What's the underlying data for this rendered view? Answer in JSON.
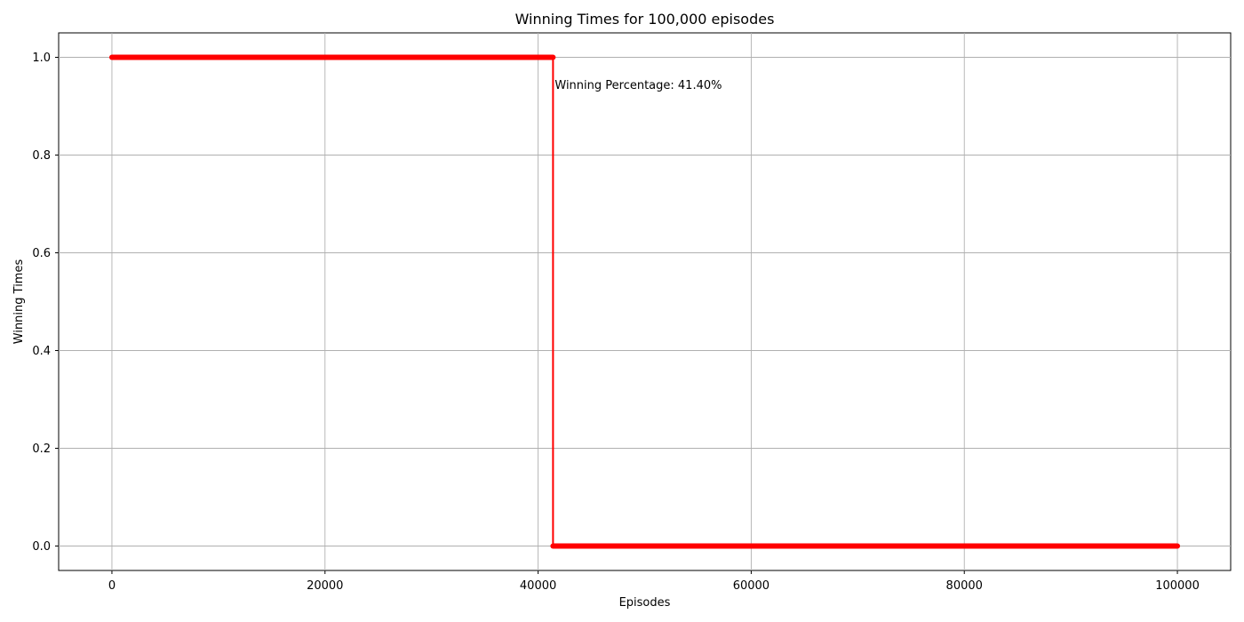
{
  "chart_data": {
    "type": "line",
    "title": "Winning Times for 100,000 episodes",
    "xlabel": "Episodes",
    "ylabel": "Winning Times",
    "xlim": [
      -5000,
      105000
    ],
    "ylim": [
      -0.05,
      1.05
    ],
    "grid": true,
    "x_ticks": [
      0,
      20000,
      40000,
      60000,
      80000,
      100000
    ],
    "x_tick_labels": [
      "0",
      "20000",
      "40000",
      "60000",
      "80000",
      "100000"
    ],
    "y_ticks": [
      0.0,
      0.2,
      0.4,
      0.6,
      0.8,
      1.0
    ],
    "y_tick_labels": [
      "0.0",
      "0.2",
      "0.4",
      "0.6",
      "0.8",
      "1.0"
    ],
    "series": [
      {
        "name": "winning times",
        "color": "#ff0000",
        "marker": "o",
        "segments": [
          {
            "x_start": 0,
            "x_end": 41400,
            "y": 1
          },
          {
            "x_start": 41400,
            "x_end": 100000,
            "y": 0
          }
        ]
      }
    ],
    "annotation": {
      "text": "Winning Percentage: 41.40%",
      "x": 41400,
      "y": 0.95
    }
  }
}
